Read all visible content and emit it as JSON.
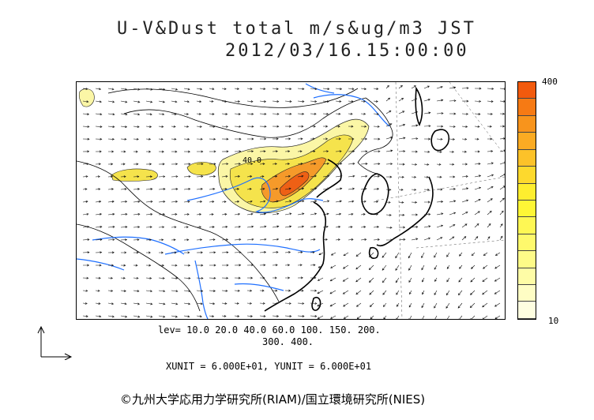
{
  "title": {
    "line1": "U-V&Dust total m/s&ug/m3 JST",
    "line2": "2012/03/16.15:00:00"
  },
  "colorbar": {
    "max_label": "400",
    "min_label": "10",
    "colors_top_to_bottom": [
      "#f25a0d",
      "#f67a14",
      "#f8941c",
      "#fbab23",
      "#fcc229",
      "#fdd92d",
      "#feee2f",
      "#fef636",
      "#fef754",
      "#fef96c",
      "#fefb88",
      "#fefca6",
      "#fefdc4",
      "#fefee0"
    ]
  },
  "levels": {
    "line1": "lev= 10.0 20.0 40.0 60.0 100. 150. 200.",
    "line2": "300. 400."
  },
  "units": "XUNIT = 6.000E+01, YUNIT = 6.000E+01",
  "map": {
    "contour_label": "40.0",
    "colors": {
      "coast": "#000000",
      "river": "#1e6fff",
      "dust_low": "#fbf6a6",
      "dust_mid": "#f5e34c",
      "dust_high": "#f59a2a",
      "dust_peak": "#ee6015"
    }
  },
  "credit": "©九州大学応用力学研究所(RIAM)/国立環境研究所(NIES)"
}
